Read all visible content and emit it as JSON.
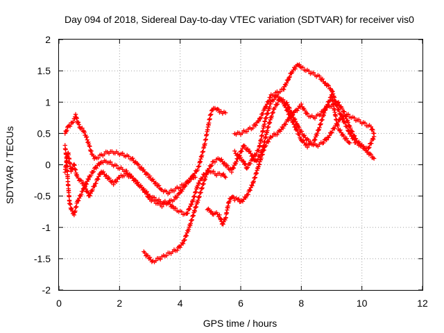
{
  "chart_data": {
    "type": "scatter",
    "title": "Day 094 of 2018, Sidereal Day-to-day VTEC variation (SDTVAR) for receiver vis0",
    "xlabel": "GPS time / hours",
    "ylabel": "SDTVAR / TECUs",
    "xlim": [
      0,
      12
    ],
    "ylim": [
      -2,
      2
    ],
    "xticks": [
      "0",
      "2",
      "4",
      "6",
      "8",
      "10",
      "12"
    ],
    "yticks": [
      "-2",
      "-1.5",
      "-1",
      "-0.5",
      "0",
      "0.5",
      "1",
      "1.5",
      "2"
    ],
    "grid": true,
    "marker": "+",
    "color": "#ff0000",
    "series": [
      {
        "x": [
          0.2,
          0.3,
          0.4,
          0.5,
          0.55,
          0.6,
          0.7,
          0.8,
          0.9,
          1.0,
          1.1,
          1.2,
          1.4,
          1.6,
          1.8,
          2.0,
          2.2,
          2.4,
          2.6,
          2.8,
          3.0,
          3.2,
          3.4,
          3.6,
          3.8,
          4.0,
          4.2,
          4.4,
          4.6,
          4.8,
          4.9,
          5.0,
          5.1,
          5.2,
          5.3,
          5.4,
          5.5
        ],
        "y": [
          0.5,
          0.6,
          0.65,
          0.72,
          0.8,
          0.7,
          0.6,
          0.55,
          0.45,
          0.3,
          0.15,
          0.1,
          0.15,
          0.2,
          0.2,
          0.18,
          0.15,
          0.1,
          0.0,
          -0.1,
          -0.2,
          -0.3,
          -0.4,
          -0.45,
          -0.4,
          -0.35,
          -0.3,
          -0.2,
          -0.05,
          0.3,
          0.55,
          0.8,
          0.92,
          0.9,
          0.85,
          0.82,
          0.83
        ]
      },
      {
        "x": [
          0.2,
          0.3,
          0.4,
          0.5,
          0.6,
          0.8,
          1.0,
          1.2,
          1.4,
          1.6,
          1.8,
          2.0,
          2.2,
          2.4,
          2.6,
          2.8,
          3.0,
          3.2,
          3.4,
          3.6,
          3.8,
          4.0,
          4.2,
          4.4,
          4.6,
          4.8,
          5.0,
          5.2,
          5.4,
          5.5
        ],
        "y": [
          -0.1,
          0.2,
          -0.1,
          0.0,
          -0.2,
          -0.3,
          -0.5,
          -0.3,
          -0.1,
          -0.2,
          -0.3,
          -0.2,
          -0.15,
          -0.2,
          -0.3,
          -0.4,
          -0.55,
          -0.6,
          -0.65,
          -0.6,
          -0.7,
          -0.75,
          -0.8,
          -0.6,
          -0.3,
          -0.15,
          -0.1,
          -0.15,
          -0.15,
          -0.2
        ]
      },
      {
        "x": [
          0.2,
          0.25,
          0.3,
          0.35,
          0.4,
          0.5,
          0.6,
          0.8,
          1.0,
          1.2,
          1.4,
          1.6,
          1.8,
          2.0,
          2.2,
          2.4,
          2.6,
          2.8,
          3.0,
          3.2,
          3.4,
          3.6,
          3.8,
          4.0,
          4.2,
          4.4,
          4.5
        ],
        "y": [
          0.3,
          0.1,
          -0.3,
          -0.6,
          -0.7,
          -0.8,
          -0.6,
          -0.4,
          -0.2,
          -0.05,
          0.05,
          0.05,
          0.0,
          -0.05,
          -0.1,
          -0.2,
          -0.3,
          -0.4,
          -0.5,
          -0.55,
          -0.6,
          -0.6,
          -0.55,
          -0.45,
          -0.3,
          -0.2,
          -0.2
        ]
      },
      {
        "x": [
          2.8,
          3.0,
          3.1,
          3.3,
          3.5,
          3.7,
          3.9,
          4.1,
          4.3,
          4.5,
          4.7,
          4.9,
          5.1,
          5.3,
          5.5,
          5.7,
          5.9,
          6.1,
          6.3,
          6.5,
          6.7,
          6.9,
          7.1,
          7.3,
          7.5,
          7.7,
          7.9,
          8.1,
          8.3,
          8.5,
          8.7,
          8.9,
          9.1,
          9.3,
          9.5,
          9.7,
          9.9,
          10.1,
          10.3,
          10.4
        ],
        "y": [
          -1.4,
          -1.5,
          -1.55,
          -1.5,
          -1.45,
          -1.4,
          -1.35,
          -1.25,
          -1.0,
          -0.7,
          -0.4,
          -0.1,
          0.05,
          0.1,
          0.0,
          -0.1,
          0.1,
          0.3,
          0.2,
          0.05,
          0.2,
          0.6,
          0.9,
          1.05,
          1.0,
          0.8,
          0.6,
          0.45,
          0.35,
          0.3,
          0.35,
          0.45,
          0.6,
          0.75,
          0.8,
          0.75,
          0.7,
          0.65,
          0.6,
          0.5
        ]
      },
      {
        "x": [
          4.9,
          5.0,
          5.1,
          5.2,
          5.3,
          5.4,
          5.5,
          5.6,
          5.7,
          5.8,
          5.9,
          6.0,
          6.2,
          6.4,
          6.6,
          6.8,
          7.0,
          7.2,
          7.4,
          7.6,
          7.8,
          8.0,
          8.2,
          8.4,
          8.6,
          8.8,
          9.0,
          9.2,
          9.4,
          9.6,
          9.8,
          10.0,
          10.2,
          10.4
        ],
        "y": [
          -0.7,
          -0.75,
          -0.8,
          -0.78,
          -0.82,
          -0.95,
          -0.85,
          -0.6,
          -0.5,
          -0.55,
          -0.55,
          -0.6,
          -0.5,
          -0.3,
          0.0,
          0.3,
          0.45,
          0.5,
          0.6,
          0.75,
          0.85,
          0.95,
          0.8,
          0.75,
          0.8,
          0.9,
          0.95,
          1.0,
          0.85,
          0.6,
          0.4,
          0.3,
          0.2,
          0.1
        ]
      },
      {
        "x": [
          5.8,
          6.0,
          6.2,
          6.4,
          6.6,
          6.8,
          7.0,
          7.2,
          7.4,
          7.6,
          7.7,
          7.8,
          7.9,
          8.0,
          8.2,
          8.4,
          8.6,
          8.8,
          9.0,
          9.2,
          9.4,
          9.6,
          9.8,
          10.0,
          10.2,
          10.4
        ],
        "y": [
          0.5,
          0.5,
          0.55,
          0.6,
          0.7,
          0.9,
          1.1,
          1.15,
          1.2,
          1.4,
          1.5,
          1.55,
          1.6,
          1.55,
          1.5,
          1.45,
          1.4,
          1.3,
          1.2,
          0.9,
          0.7,
          0.5,
          0.35,
          0.3,
          0.25,
          0.45
        ]
      },
      {
        "x": [
          5.8,
          6.0,
          6.1,
          6.2,
          6.4,
          6.6,
          6.8,
          7.0,
          7.2,
          7.4,
          7.6,
          7.8,
          8.0,
          8.2,
          8.4,
          8.6,
          8.8,
          9.0,
          9.2,
          9.4,
          9.6
        ],
        "y": [
          0.2,
          0.1,
          0.05,
          -0.05,
          0.1,
          0.25,
          0.7,
          1.0,
          1.1,
          1.0,
          0.8,
          0.6,
          0.4,
          0.3,
          0.35,
          0.6,
          0.9,
          1.1,
          0.6,
          0.45,
          0.35
        ]
      }
    ]
  }
}
